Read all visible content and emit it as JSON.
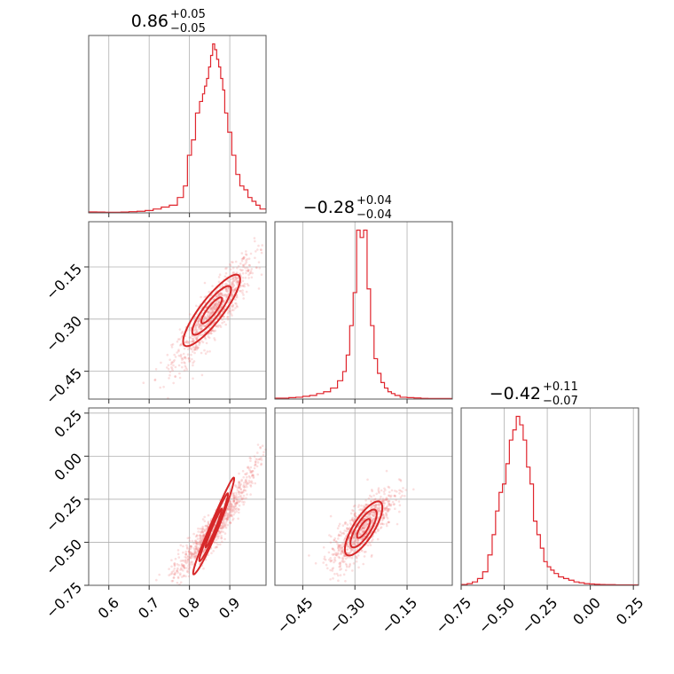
{
  "chart_data": [
    {
      "type": "histogram",
      "panel": "1D marginal, parameter 1",
      "title": {
        "median": "0.86",
        "plus": "+0.05",
        "minus": "−0.05"
      },
      "x_range": [
        0.55,
        0.99
      ],
      "x_ticks": [
        0.6,
        0.7,
        0.8,
        0.9
      ],
      "bin_centers": [
        0.56,
        0.58,
        0.6,
        0.62,
        0.64,
        0.66,
        0.68,
        0.7,
        0.72,
        0.74,
        0.76,
        0.78,
        0.79,
        0.8,
        0.81,
        0.82,
        0.83,
        0.835,
        0.84,
        0.845,
        0.85,
        0.855,
        0.86,
        0.865,
        0.87,
        0.875,
        0.88,
        0.885,
        0.89,
        0.9,
        0.91,
        0.92,
        0.93,
        0.94,
        0.95,
        0.96,
        0.97,
        0.98
      ],
      "counts": [
        0.5,
        0.4,
        0.3,
        0.3,
        0.4,
        0.6,
        0.8,
        1.2,
        2,
        3,
        4,
        8,
        14,
        30,
        38,
        52,
        58,
        62,
        66,
        70,
        76,
        82,
        88,
        85,
        80,
        76,
        70,
        64,
        52,
        42,
        30,
        20,
        14,
        12,
        8,
        6,
        4,
        2
      ]
    },
    {
      "type": "scatter-contour",
      "panel": "2D, parameter 2 vs parameter 1",
      "x_range": [
        0.55,
        0.99
      ],
      "y_range": [
        -0.53,
        -0.02
      ],
      "x_ticks": [
        0.6,
        0.7,
        0.8,
        0.9
      ],
      "y_ticks": [
        -0.45,
        -0.3,
        -0.15
      ],
      "y_tick_labels": [
        "−0.45",
        "−0.30",
        "−0.15"
      ],
      "density_peak": [
        0.85,
        -0.27
      ],
      "correlation": "positive"
    },
    {
      "type": "histogram",
      "panel": "1D marginal, parameter 2",
      "title": {
        "median": "−0.28",
        "plus": "+0.04",
        "minus": "−0.04"
      },
      "x_range": [
        -0.53,
        -0.02
      ],
      "x_ticks": [
        -0.45,
        -0.3,
        -0.15
      ],
      "bin_centers": [
        -0.5,
        -0.48,
        -0.46,
        -0.44,
        -0.42,
        -0.4,
        -0.38,
        -0.36,
        -0.34,
        -0.33,
        -0.32,
        -0.31,
        -0.3,
        -0.29,
        -0.28,
        -0.27,
        -0.26,
        -0.25,
        -0.24,
        -0.23,
        -0.22,
        -0.21,
        -0.2,
        -0.19,
        -0.18,
        -0.16,
        -0.14,
        -0.12,
        -0.1,
        -0.08
      ],
      "counts": [
        0.5,
        0.8,
        1,
        1.5,
        2,
        3,
        4,
        6,
        10,
        15,
        24,
        40,
        58,
        92,
        88,
        92,
        60,
        40,
        22,
        14,
        9,
        6,
        4,
        3,
        2,
        1,
        0.8,
        0.6,
        0.4,
        0.3
      ]
    },
    {
      "type": "scatter-contour",
      "panel": "2D, parameter 3 vs parameter 1",
      "x_range": [
        0.55,
        0.99
      ],
      "y_range": [
        -0.75,
        0.28
      ],
      "x_ticks": [
        0.6,
        0.7,
        0.8,
        0.9
      ],
      "x_tick_labels": [
        "0.6",
        "0.7",
        "0.8",
        "0.9"
      ],
      "y_ticks": [
        -0.75,
        -0.5,
        -0.25,
        0.0,
        0.25
      ],
      "y_tick_labels": [
        "−0.75",
        "−0.50",
        "−0.25",
        "0.00",
        "0.25"
      ],
      "density_peak": [
        0.85,
        -0.45
      ],
      "correlation": "strong positive, curved"
    },
    {
      "type": "scatter-contour",
      "panel": "2D, parameter 3 vs parameter 2",
      "x_range": [
        -0.53,
        -0.02
      ],
      "y_range": [
        -0.75,
        0.28
      ],
      "x_ticks": [
        -0.45,
        -0.3,
        -0.15
      ],
      "x_tick_labels": [
        "−0.45",
        "−0.30",
        "−0.15"
      ],
      "density_peak": [
        -0.28,
        -0.45
      ],
      "correlation": "positive"
    },
    {
      "type": "histogram",
      "panel": "1D marginal, parameter 3",
      "title": {
        "median": "−0.42",
        "plus": "+0.11",
        "minus": "−0.07"
      },
      "x_range": [
        -0.75,
        0.28
      ],
      "x_ticks": [
        -0.75,
        -0.5,
        -0.25,
        0.0,
        0.25
      ],
      "x_tick_labels": [
        "−0.75",
        "−0.50",
        "−0.25",
        "0.00",
        "0.25"
      ],
      "bin_centers": [
        -0.73,
        -0.7,
        -0.67,
        -0.64,
        -0.61,
        -0.58,
        -0.56,
        -0.54,
        -0.52,
        -0.5,
        -0.48,
        -0.46,
        -0.44,
        -0.42,
        -0.4,
        -0.38,
        -0.36,
        -0.34,
        -0.32,
        -0.3,
        -0.28,
        -0.26,
        -0.24,
        -0.22,
        -0.2,
        -0.17,
        -0.14,
        -0.11,
        -0.08,
        -0.05,
        -0.02,
        0.01,
        0.04,
        0.07,
        0.1,
        0.13,
        0.16,
        0.2,
        0.24
      ],
      "counts": [
        0.5,
        1,
        2,
        4,
        8,
        18,
        30,
        44,
        55,
        60,
        72,
        86,
        92,
        100,
        95,
        86,
        70,
        60,
        38,
        30,
        22,
        14,
        11,
        9,
        7,
        5,
        4,
        3,
        2,
        1.5,
        1,
        0.8,
        0.6,
        0.5,
        0.4,
        0.4,
        0.3,
        0.3,
        0.3
      ]
    }
  ],
  "colors": {
    "series": "#e0252d",
    "contour": "#d62728",
    "contour_fill": "#f4b6b6",
    "points": "#f08080",
    "grid": "#b0b0b0",
    "frame": "#555555"
  }
}
